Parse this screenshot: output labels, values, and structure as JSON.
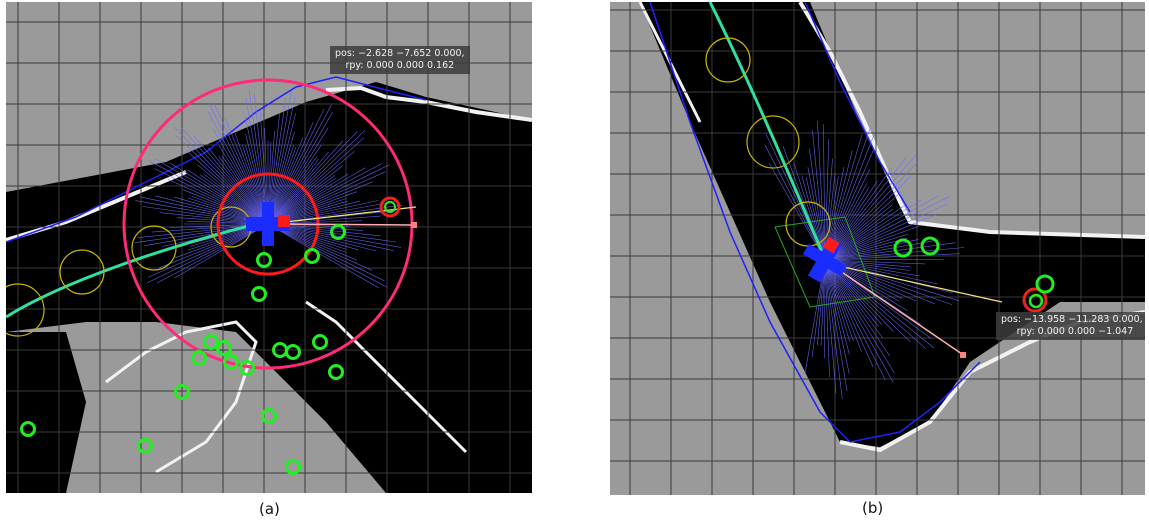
{
  "panel_a": {
    "caption": "(a)",
    "pose_readout": {
      "pos": "pos: −2.628 −7.652 0.000,",
      "rpy": "rpy: 0.000 0.000 0.162"
    }
  },
  "panel_b": {
    "caption": "(b)",
    "pose_readout": {
      "pos": "pos: −13.958 −11.283 0.000, |",
      "rpy": "rpy: 0.000 0.000 −1.047"
    }
  },
  "colors": {
    "unknown_cell": "#9a9a9a",
    "free_space": "#000000",
    "obstacle_edge": "#f2f2f2",
    "grid_line": "#3a3a3a",
    "laser_scan": "#2020ff",
    "laser_rays": "#6a6aff",
    "planned_path": "#30e0a0",
    "robot_body": "#1a2cff",
    "robot_heading": "#ff1a1a",
    "outer_ring": "#ff2a7a",
    "inner_ring": "#ff1a1a",
    "obstacle_marker": "#22ee22",
    "target_marker": "#ee2222",
    "waypoint_circle": "#c8b400",
    "goal_line": "#f5e27a",
    "goal_ray": "#ffb0b0"
  }
}
